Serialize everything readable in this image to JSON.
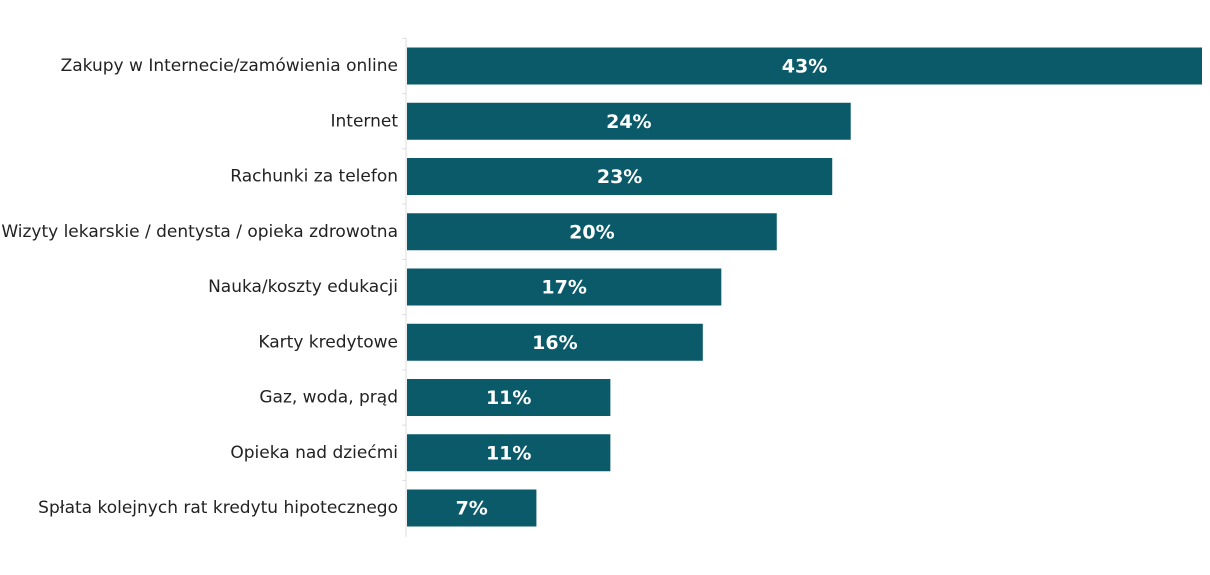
{
  "chart_data": {
    "type": "bar",
    "orientation": "horizontal",
    "categories": [
      "Zakupy w Internecie/zamówienia online",
      "Internet",
      "Rachunki za telefon",
      "Wizyty lekarskie / dentysta / opieka zdrowotna",
      "Nauka/koszty edukacji",
      "Karty kredytowe",
      "Gaz, woda, prąd",
      "Opieka nad dziećmi",
      "Spłata kolejnych rat kredytu hipotecznego"
    ],
    "values": [
      43,
      24,
      23,
      20,
      17,
      16,
      11,
      11,
      7
    ],
    "value_labels": [
      "43%",
      "24%",
      "23%",
      "20%",
      "17%",
      "16%",
      "11%",
      "11%",
      "7%"
    ],
    "color": "#0a5a69"
  }
}
